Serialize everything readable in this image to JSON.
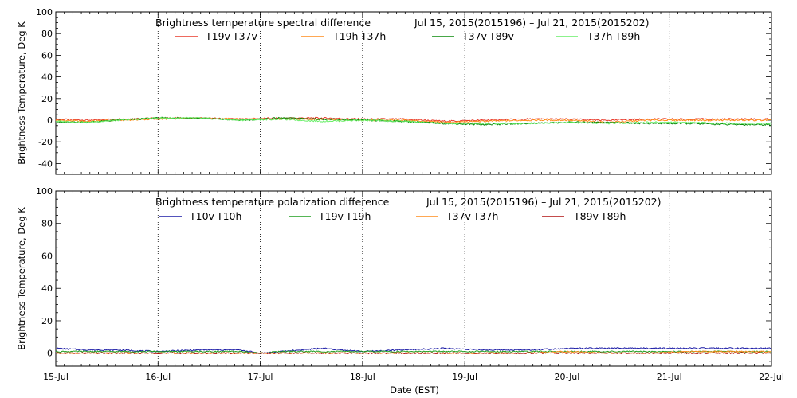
{
  "figure": {
    "xlabel": "Date (EST)",
    "x_ticks": [
      "15-Jul",
      "16-Jul",
      "17-Jul",
      "18-Jul",
      "19-Jul",
      "20-Jul",
      "21-Jul",
      "22-Jul"
    ],
    "grid_days": [
      16,
      17,
      18,
      19,
      20,
      21
    ]
  },
  "chart_data": [
    {
      "type": "line",
      "title": "Brightness temperature spectral difference",
      "date_range": "Jul 15, 2015(2015196) – Jul 21, 2015(2015202)",
      "ylabel": "Brightness Temperature, Deg K",
      "xlabel": "",
      "xlim": [
        "2015-07-15",
        "2015-07-22"
      ],
      "ylim": [
        -50,
        100
      ],
      "y_ticks": [
        -40,
        -20,
        0,
        20,
        40,
        60,
        80,
        100
      ],
      "grid": "vertical dotted at day boundaries",
      "legend": "top",
      "series": [
        {
          "name": "T19v-T37v",
          "color": "#e8392a",
          "x": [
            15.0,
            15.3,
            15.6,
            16.0,
            16.4,
            16.8,
            17.2,
            17.6,
            18.0,
            18.4,
            18.8,
            19.2,
            19.6,
            20.0,
            20.4,
            20.8,
            21.2,
            21.6,
            22.0
          ],
          "values": [
            1,
            0,
            1,
            2,
            2,
            1,
            2,
            2,
            1,
            1,
            -1,
            0,
            1,
            1,
            0,
            1,
            1,
            1,
            1
          ]
        },
        {
          "name": "T19h-T37h",
          "color": "#ff8c1a",
          "x": [
            15.0,
            15.3,
            15.6,
            16.0,
            16.4,
            16.8,
            17.2,
            17.6,
            18.0,
            18.4,
            18.8,
            19.2,
            19.6,
            20.0,
            20.4,
            20.8,
            21.2,
            21.6,
            22.0
          ],
          "values": [
            0,
            -1,
            0,
            1,
            2,
            1,
            1,
            1,
            0,
            0,
            -2,
            -1,
            0,
            0,
            -2,
            0,
            0,
            0,
            0
          ]
        },
        {
          "name": "T37v-T89v",
          "color": "#0a8a0a",
          "x": [
            15.0,
            15.3,
            15.6,
            16.0,
            16.4,
            16.8,
            17.2,
            17.6,
            18.0,
            18.4,
            18.8,
            19.2,
            19.6,
            20.0,
            20.4,
            20.8,
            21.2,
            21.6,
            22.0
          ],
          "values": [
            -2,
            -2,
            0,
            2,
            2,
            0,
            2,
            1,
            0,
            -1,
            -3,
            -4,
            -3,
            -2,
            -2,
            -3,
            -3,
            -4,
            -4
          ]
        },
        {
          "name": "T37h-T89h",
          "color": "#66ee66",
          "x": [
            15.0,
            15.3,
            15.6,
            16.0,
            16.4,
            16.8,
            17.2,
            17.6,
            18.0,
            18.4,
            18.8,
            19.2,
            19.6,
            20.0,
            20.4,
            20.8,
            21.2,
            21.6,
            22.0
          ],
          "values": [
            -1,
            -2,
            0,
            2,
            2,
            0,
            1,
            -1,
            0,
            -1,
            -3,
            -3,
            -3,
            -2,
            -3,
            -2,
            -2,
            -3,
            -3
          ]
        }
      ]
    },
    {
      "type": "line",
      "title": "Brightness temperature polarization difference",
      "date_range": "Jul 15, 2015(2015196) – Jul 21, 2015(2015202)",
      "ylabel": "Brightness Temperature, Deg K",
      "xlabel": "Date (EST)",
      "xlim": [
        "2015-07-15",
        "2015-07-22"
      ],
      "ylim": [
        -8,
        100
      ],
      "y_ticks": [
        0,
        20,
        40,
        60,
        80,
        100
      ],
      "grid": "vertical dotted at day boundaries",
      "legend": "top",
      "series": [
        {
          "name": "T10v-T10h",
          "color": "#1a1aa6",
          "x": [
            15.0,
            15.3,
            15.6,
            16.0,
            16.4,
            16.8,
            17.0,
            17.2,
            17.6,
            18.0,
            18.4,
            18.8,
            19.2,
            19.6,
            20.0,
            20.4,
            20.8,
            21.2,
            21.6,
            22.0
          ],
          "values": [
            3,
            2,
            2,
            1,
            2,
            2,
            0,
            1,
            3,
            1,
            2,
            3,
            2,
            2,
            3,
            3,
            3,
            3,
            3,
            3
          ]
        },
        {
          "name": "T19v-T19h",
          "color": "#1e9e1e",
          "x": [
            15.0,
            15.3,
            15.6,
            16.0,
            16.4,
            16.8,
            17.0,
            17.2,
            17.6,
            18.0,
            18.4,
            18.8,
            19.2,
            19.6,
            20.0,
            20.4,
            20.8,
            21.2,
            21.6,
            22.0
          ],
          "values": [
            1,
            1,
            1,
            1,
            1,
            1,
            0,
            1,
            1,
            1,
            1,
            1,
            1,
            1,
            1,
            1,
            1,
            1,
            1,
            1
          ]
        },
        {
          "name": "T37v-T37h",
          "color": "#ff8c1a",
          "x": [
            15.0,
            15.3,
            15.6,
            16.0,
            16.4,
            16.8,
            17.0,
            17.2,
            17.6,
            18.0,
            18.4,
            18.8,
            19.2,
            19.6,
            20.0,
            20.4,
            20.8,
            21.2,
            21.6,
            22.0
          ],
          "values": [
            0,
            0,
            0,
            0,
            0,
            0,
            0,
            0,
            0,
            0,
            0,
            0,
            0,
            0,
            1,
            0,
            0,
            1,
            1,
            1
          ]
        },
        {
          "name": "T89v-T89h",
          "color": "#b01010",
          "x": [
            15.0,
            15.3,
            15.6,
            16.0,
            16.4,
            16.8,
            17.0,
            17.2,
            17.6,
            18.0,
            18.4,
            18.8,
            19.2,
            19.6,
            20.0,
            20.4,
            20.8,
            21.2,
            21.6,
            22.0
          ],
          "values": [
            0,
            0,
            0,
            0,
            0,
            0,
            0,
            0,
            0,
            0,
            0,
            0,
            0,
            0,
            0,
            0,
            0,
            0,
            0,
            0
          ]
        }
      ]
    }
  ]
}
